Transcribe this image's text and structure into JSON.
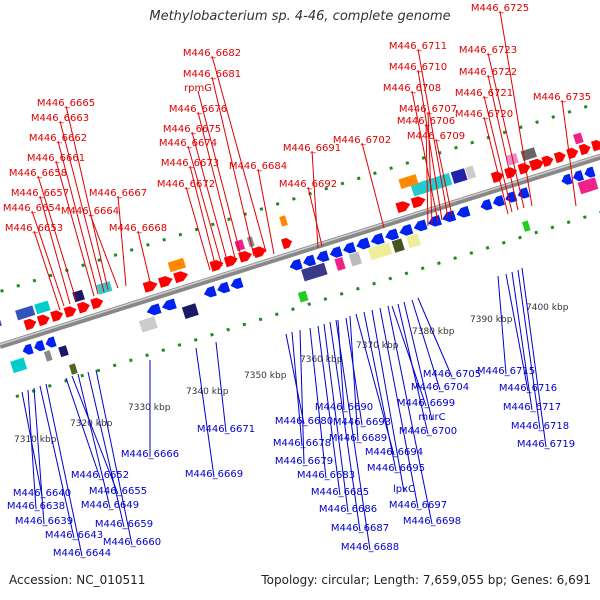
{
  "title": "Methylobacterium sp. 4-46, complete genome",
  "accession": "Accession: NC_010511",
  "topology": "Topology: circular; Length: 7,659,055 bp; Genes: 6,691",
  "colors": {
    "forward_label": "#e00000",
    "reverse_label": "#0000cc",
    "forward_arrow": "#ff0000",
    "reverse_arrow": "#0022ee",
    "backbone": "#888888",
    "tick_green": "#228822"
  },
  "ticks": [
    "7310 kbp",
    "7320 kbp",
    "7330 kbp",
    "7340 kbp",
    "7350 kbp",
    "7360 kbp",
    "7370 kbp",
    "7380 kbp",
    "7390 kbp",
    "7400 kbp"
  ],
  "forward_labels": [
    "M446_6653",
    "M446_6654",
    "M446_6657",
    "M446_6658",
    "M446_6661",
    "M446_6662",
    "M446_6663",
    "M446_6665",
    "M446_6664",
    "M446_6667",
    "M446_6668",
    "M446_6672",
    "M446_6673",
    "M446_6674",
    "M446_6675",
    "M446_6676",
    "rpmG",
    "M446_6681",
    "M446_6682",
    "M446_6684",
    "M446_6691",
    "M446_6692",
    "M446_6702",
    "M446_6706",
    "M446_6707",
    "M446_6708",
    "M446_6710",
    "M446_6711",
    "M446_6709",
    "M446_6720",
    "M446_6721",
    "M446_6722",
    "M446_6723",
    "M446_6725",
    "M446_6735"
  ],
  "reverse_labels": [
    "M446_6640",
    "M446_6638",
    "M446_6639",
    "M446_6643",
    "M446_6644",
    "M446_6652",
    "M446_6655",
    "M446_6649",
    "M446_6659",
    "M446_6660",
    "M446_6666",
    "M446_6669",
    "M446_6671",
    "M446_6680",
    "M446_6678",
    "M446_6679",
    "M446_6683",
    "M446_6685",
    "M446_6686",
    "M446_6687",
    "M446_6688",
    "M446_6690",
    "M446_6693",
    "M446_6689",
    "M446_6694",
    "M446_6695",
    "lpxC",
    "M446_6697",
    "M446_6698",
    "M446_6699",
    "M446_6700",
    "murC",
    "M446_6704",
    "M446_6705",
    "M446_6715",
    "M446_6716",
    "M446_6717",
    "M446_6718",
    "M446_6719"
  ]
}
